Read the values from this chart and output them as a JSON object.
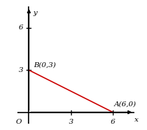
{
  "point_A": [
    6,
    0
  ],
  "point_B": [
    0,
    3
  ],
  "line_color": "#cc0000",
  "line_width": 1.2,
  "axis_color": "#000000",
  "background_color": "#ffffff",
  "x_ticks": [
    3,
    6
  ],
  "y_ticks": [
    3,
    6
  ],
  "x_label": "x",
  "y_label": "y",
  "origin_label": "O",
  "label_A": "A(6,0)",
  "label_B": "B(0,3)",
  "xlim": [
    -0.8,
    7.8
  ],
  "ylim": [
    -0.8,
    7.8
  ],
  "font_size": 7.5
}
